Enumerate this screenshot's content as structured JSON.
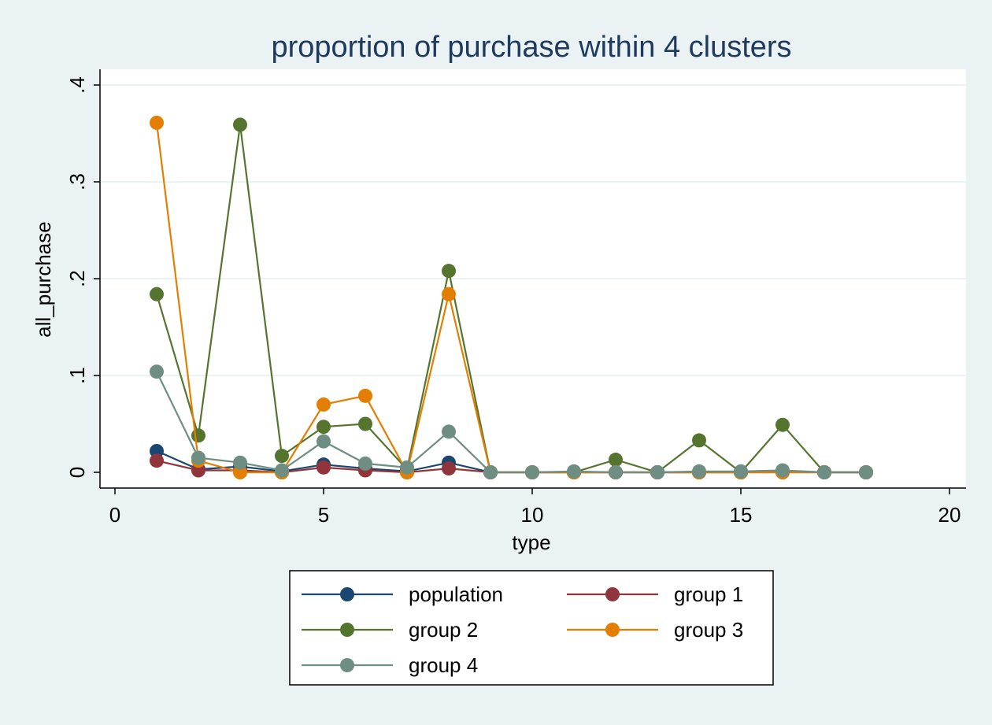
{
  "chart_data": {
    "type": "line",
    "title": "proportion of purchase within 4 clusters",
    "xlabel": "type",
    "ylabel": "all_purchase",
    "xlim": [
      0,
      20
    ],
    "ylim": [
      0,
      0.4
    ],
    "xticks": [
      0,
      5,
      10,
      15,
      20
    ],
    "xtick_labels": [
      "0",
      "5",
      "10",
      "15",
      "20"
    ],
    "yticks": [
      0,
      0.1,
      0.2,
      0.3,
      0.4
    ],
    "ytick_labels": [
      "0",
      ".1",
      ".2",
      ".3",
      ".4"
    ],
    "grid": "horizontal",
    "legend_position": "bottom",
    "x": [
      1,
      2,
      3,
      4,
      5,
      6,
      7,
      8,
      9,
      10,
      11,
      12,
      13,
      14,
      15,
      16,
      17,
      18
    ],
    "series": [
      {
        "name": "population",
        "color": "#1a476f",
        "values": [
          0.022,
          0.003,
          0.006,
          0.001,
          0.008,
          0.004,
          0.001,
          0.01,
          0.0,
          0.0,
          0.0,
          0.0,
          0.0,
          0.0,
          0.0,
          0.001,
          0.0,
          0.0
        ]
      },
      {
        "name": "group 1",
        "color": "#90353b",
        "values": [
          0.012,
          0.002,
          0.002,
          0.0,
          0.005,
          0.002,
          0.0,
          0.004,
          0.0,
          0.0,
          0.0,
          0.0,
          0.0,
          0.0,
          0.0,
          0.0,
          0.0,
          0.0
        ]
      },
      {
        "name": "group 2",
        "color": "#55752f",
        "values": [
          0.184,
          0.038,
          0.359,
          0.017,
          0.047,
          0.05,
          0.003,
          0.208,
          0.0,
          0.0,
          0.0,
          0.013,
          0.0,
          0.033,
          0.0,
          0.049,
          0.0,
          0.0
        ]
      },
      {
        "name": "group 3",
        "color": "#e37e00",
        "values": [
          0.361,
          0.012,
          0.0,
          0.0,
          0.07,
          0.079,
          0.0,
          0.184,
          0.0,
          0.0,
          0.0,
          0.0,
          0.0,
          0.0,
          0.0,
          0.0,
          0.0,
          0.0
        ]
      },
      {
        "name": "group 4",
        "color": "#6e8e84",
        "values": [
          0.104,
          0.015,
          0.01,
          0.002,
          0.032,
          0.009,
          0.005,
          0.042,
          0.0,
          0.0,
          0.001,
          0.0,
          0.0,
          0.001,
          0.001,
          0.002,
          0.0,
          0.0
        ]
      }
    ]
  },
  "colors": {
    "page_background": "#eaf2f3",
    "plot_background": "#ffffff",
    "grid": "#eaf2f3",
    "title": "#1e3a5c",
    "axis_text": "#000000"
  }
}
